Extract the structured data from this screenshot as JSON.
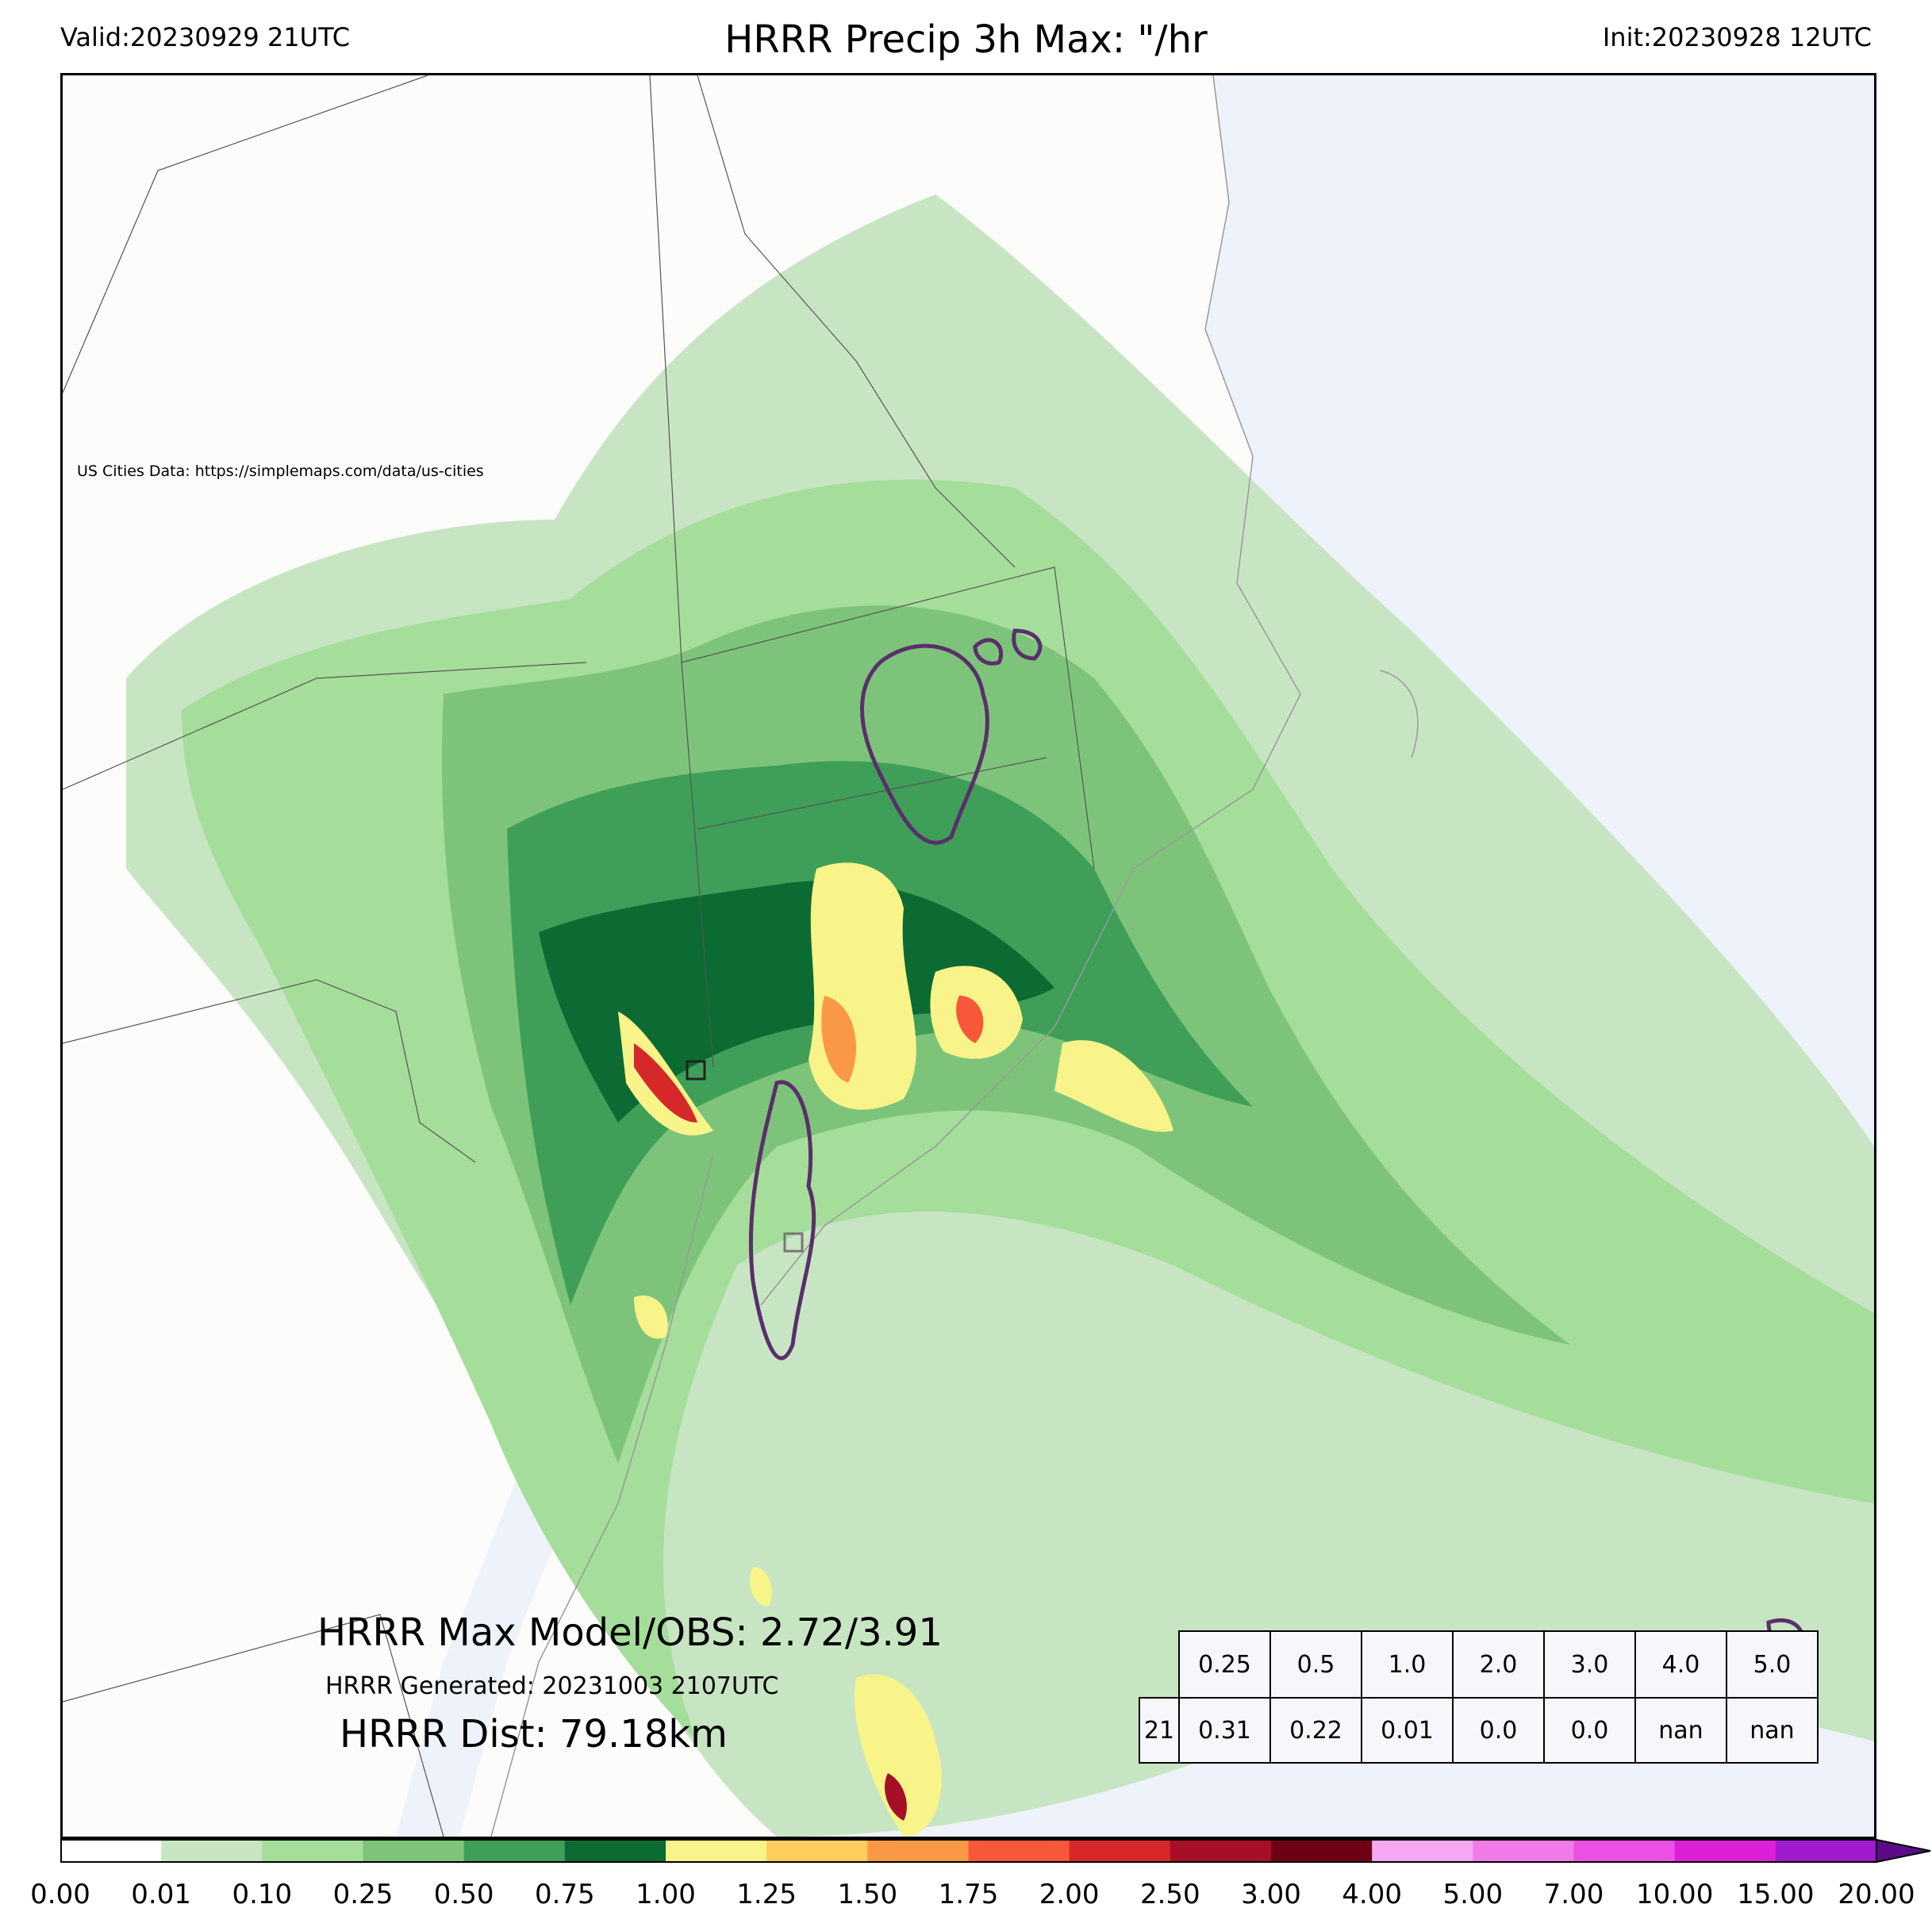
{
  "header": {
    "valid": "Valid:20230929 21UTC",
    "title": "HRRR Precip 3h Max: \"/hr",
    "init": "Init:20230928 12UTC"
  },
  "map": {
    "credit": "US Cities Data: https://simplemaps.com/data/us-cities",
    "ocean_color": "#eef2fa",
    "land_color": "#fcfcfa",
    "max_line": "HRRR Max Model/OBS: 2.72/3.91",
    "generated_line": "HRRR Generated: 20231003 2107UTC",
    "dist_line": "HRRR Dist: 79.18km"
  },
  "stats_table": {
    "thresholds": [
      "0.25",
      "0.5",
      "1.0",
      "2.0",
      "3.0",
      "4.0",
      "5.0"
    ],
    "row_label": "21",
    "values": [
      "0.31",
      "0.22",
      "0.01",
      "0.0",
      "0.0",
      "nan",
      "nan"
    ]
  },
  "colorbar": {
    "ticks": [
      "0.00",
      "0.01",
      "0.10",
      "0.25",
      "0.50",
      "0.75",
      "1.00",
      "1.25",
      "1.50",
      "1.75",
      "2.00",
      "2.50",
      "3.00",
      "4.00",
      "5.00",
      "7.00",
      "10.00",
      "15.00",
      "20.00"
    ],
    "colors": [
      "#ffffff",
      "#c7e5c2",
      "#a5dd9a",
      "#7dc47a",
      "#3f9f58",
      "#0c6b32",
      "#f8f48a",
      "#fdcd5e",
      "#fb9846",
      "#f7583a",
      "#d62829",
      "#a70f26",
      "#6e0014",
      "#f7a8f2",
      "#f17ae9",
      "#ec4fe4",
      "#de1fd8",
      "#a01acf",
      "#5c0b88"
    ]
  }
}
